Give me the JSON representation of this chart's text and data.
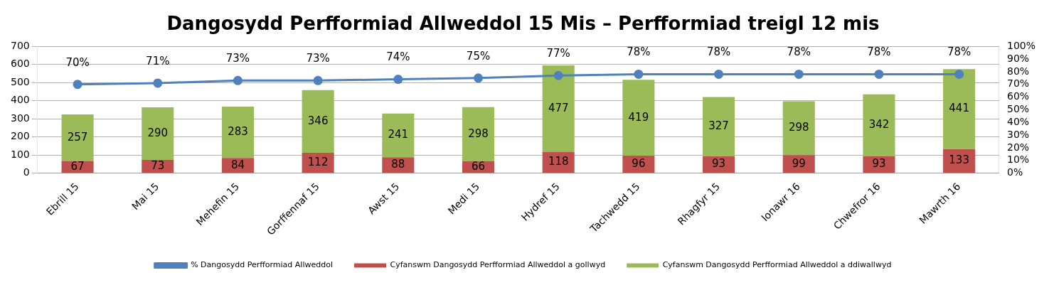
{
  "chart_data": {
    "type": "bar",
    "title": "Dangosydd Perfformiad Allweddol 15 Mis – Perfformiad treigl 12 mis",
    "stacked": true,
    "grid": "y",
    "legend": "bottom",
    "marker": "circle",
    "categories": [
      "Ebrill 15",
      "Mai 15",
      "Mehefin 15",
      "Gorffennaf 15",
      "Awst 15",
      "Medi 15",
      "Hydref 15",
      "Tachwedd 15",
      "Rhagfyr 15",
      "Ionawr 16",
      "Chwefror 16",
      "Mawrth 16"
    ],
    "ylim": [
      0,
      700
    ],
    "yticks": [
      0,
      100,
      200,
      300,
      400,
      500,
      600,
      700
    ],
    "y2lim": [
      0,
      100
    ],
    "y2ticks": [
      {
        "value": 0,
        "label": "0%"
      },
      {
        "value": 10,
        "label": "10%"
      },
      {
        "value": 20,
        "label": "20%"
      },
      {
        "value": 30,
        "label": "30%"
      },
      {
        "value": 40,
        "label": "40%"
      },
      {
        "value": 50,
        "label": "50%"
      },
      {
        "value": 60,
        "label": "60%"
      },
      {
        "value": 70,
        "label": "70%"
      },
      {
        "value": 80,
        "label": "80%"
      },
      {
        "value": 90,
        "label": "90%"
      },
      {
        "value": 100,
        "label": "100%"
      }
    ],
    "series": [
      {
        "name": "Cyfanswm Dangosydd Perfformiad Allweddol a gollwyd",
        "color": "#c0504d",
        "values": [
          67,
          73,
          84,
          112,
          88,
          66,
          118,
          96,
          93,
          99,
          93,
          133
        ],
        "value_labels": [
          "67",
          "73",
          "84",
          "112",
          "88",
          "66",
          "118",
          "96",
          "93",
          "99",
          "93",
          "133"
        ]
      },
      {
        "name": "Cyfanswm Dangosydd Perfformiad Allweddol a ddiwallwyd",
        "color": "#9bbb59",
        "values": [
          257,
          290,
          283,
          346,
          241,
          298,
          477,
          419,
          327,
          298,
          342,
          441
        ],
        "value_labels": [
          "257",
          "290",
          "283",
          "346",
          "241",
          "298",
          "477",
          "419",
          "327",
          "298",
          "342",
          "441"
        ]
      },
      {
        "name": "% Dangosydd Perfformiad Allweddol",
        "type": "line",
        "axis": "y2",
        "color": "#4f81bd",
        "values": [
          70,
          71,
          73,
          73,
          74,
          75,
          77,
          78,
          78,
          78,
          78,
          78
        ],
        "value_labels": [
          "70%",
          "71%",
          "73%",
          "73%",
          "74%",
          "75%",
          "77%",
          "78%",
          "78%",
          "78%",
          "78%",
          "78%"
        ]
      }
    ]
  }
}
